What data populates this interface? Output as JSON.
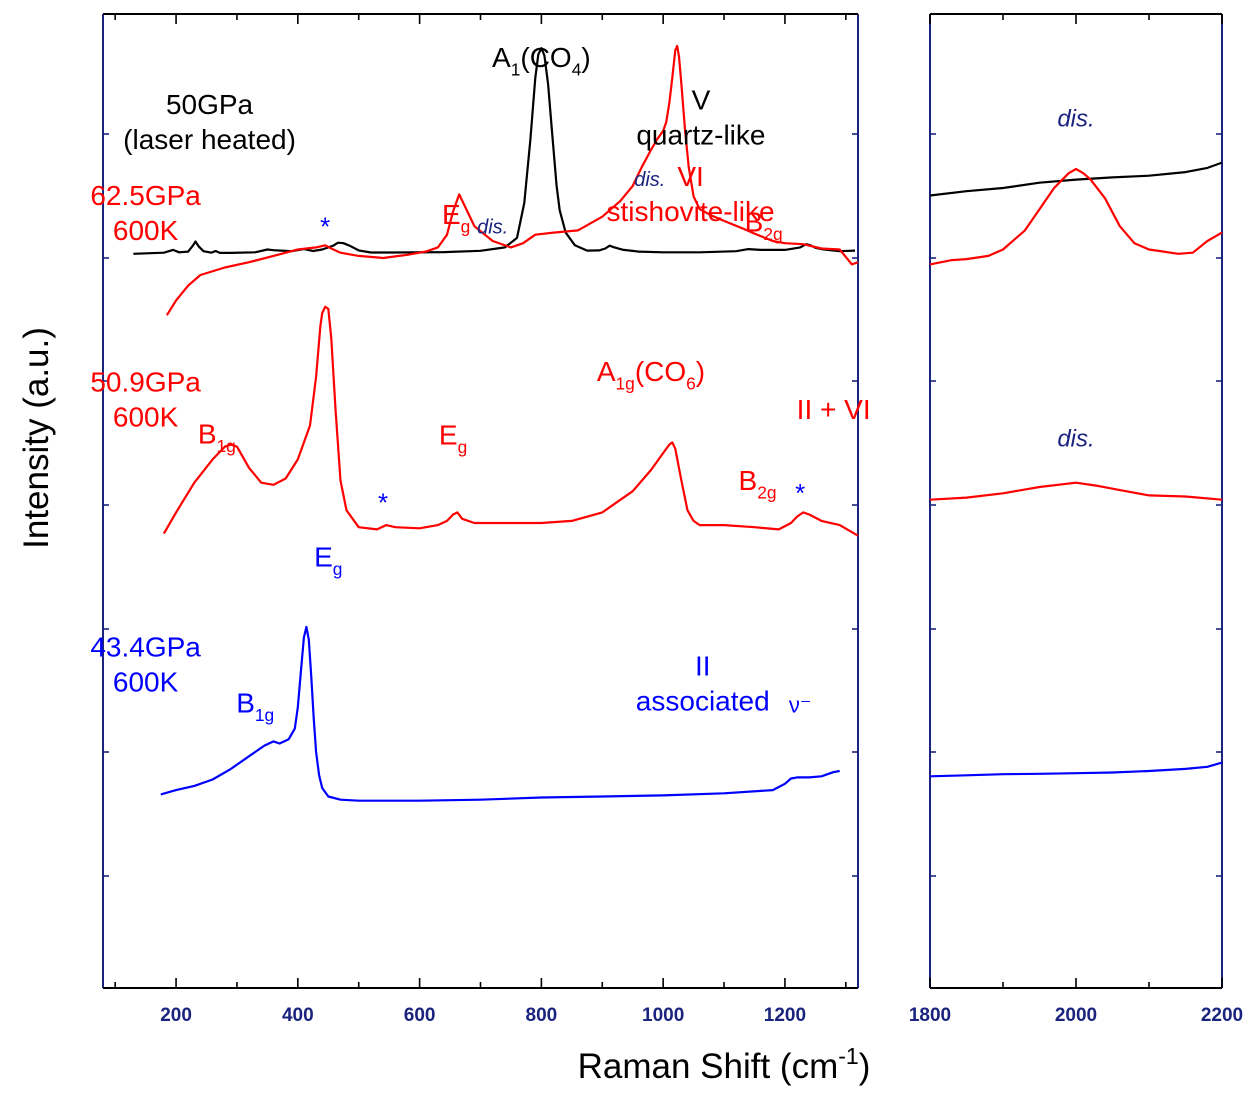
{
  "chart_data": {
    "type": "line",
    "ylabel": "Intensity (a.u.)",
    "xlabel": {
      "main": "Raman Shift (cm",
      "sup": "-1",
      "tail": ")"
    },
    "colors": {
      "axis": "#1a237e",
      "black": "#000000",
      "red": "#ff0000",
      "blue": "#0000ff",
      "navy": "#1a237e"
    },
    "panels": [
      {
        "id": "left",
        "xlim": [
          80,
          1320
        ],
        "ylim": [
          0,
          1000
        ],
        "xticks": [
          200,
          400,
          600,
          800,
          1000,
          1200
        ],
        "tick_labels": [
          "200",
          "400",
          "600",
          "800",
          "1000",
          "1200"
        ]
      },
      {
        "id": "right",
        "xlim": [
          1800,
          2200
        ],
        "ylim": [
          0,
          1000
        ],
        "xticks": [
          1800,
          2000,
          2200
        ],
        "tick_labels": [
          "1800",
          "2000",
          "2200"
        ]
      }
    ],
    "series": [
      {
        "key": "s50",
        "color": "#000000",
        "left": {
          "x": [
            130,
            180,
            195,
            205,
            220,
            228,
            232,
            237,
            245,
            258,
            265,
            272,
            290,
            330,
            350,
            360,
            372,
            390,
            410,
            425,
            440,
            458,
            466,
            475,
            485,
            500,
            520,
            560,
            640,
            700,
            740,
            760,
            772,
            782,
            790,
            795,
            800,
            805,
            811,
            818,
            825,
            830,
            840,
            855,
            875,
            895,
            905,
            912,
            920,
            935,
            960,
            1000,
            1060,
            1120,
            1140,
            1160,
            1200,
            1225,
            1235,
            1242,
            1250,
            1260,
            1270,
            1290,
            1315
          ],
          "y": [
            20,
            25,
            38,
            27,
            30,
            60,
            78,
            55,
            32,
            25,
            33,
            24,
            24,
            27,
            40,
            37,
            35,
            32,
            42,
            33,
            40,
            58,
            72,
            70,
            58,
            36,
            26,
            26,
            28,
            34,
            50,
            95,
            260,
            560,
            850,
            960,
            990,
            955,
            820,
            580,
            340,
            225,
            120,
            60,
            35,
            36,
            45,
            58,
            50,
            38,
            30,
            27,
            27,
            32,
            42,
            38,
            38,
            50,
            65,
            60,
            48,
            42,
            38,
            32,
            35
          ]
        },
        "right": {
          "x": [
            1800,
            1850,
            1900,
            1950,
            2000,
            2050,
            2100,
            2150,
            2180,
            2200
          ],
          "y": [
            295,
            315,
            330,
            355,
            370,
            380,
            388,
            405,
            425,
            450
          ]
        }
      },
      {
        "key": "s625",
        "color": "#ff0000",
        "left": {
          "x": [
            185,
            200,
            220,
            240,
            280,
            320,
            360,
            400,
            430,
            445,
            455,
            470,
            500,
            540,
            580,
            610,
            630,
            645,
            655,
            665,
            675,
            690,
            720,
            750,
            770,
            790,
            820,
            860,
            900,
            930,
            950,
            965,
            980,
            990,
            1000,
            1005,
            1010,
            1015,
            1020,
            1023,
            1026,
            1030,
            1036,
            1042,
            1050,
            1060,
            1080,
            1100,
            1130,
            1150,
            1180,
            1200,
            1230,
            1260,
            1290,
            1310,
            1320
          ],
          "y": [
            -270,
            -200,
            -130,
            -80,
            -45,
            -20,
            10,
            40,
            50,
            60,
            45,
            25,
            10,
            0,
            15,
            30,
            50,
            110,
            220,
            300,
            240,
            150,
            80,
            50,
            70,
            110,
            120,
            130,
            195,
            270,
            340,
            430,
            510,
            560,
            600,
            640,
            730,
            850,
            980,
            1000,
            950,
            820,
            600,
            430,
            290,
            230,
            200,
            175,
            140,
            115,
            80,
            70,
            65,
            45,
            40,
            -30,
            -20
          ]
        },
        "right": {
          "x": [
            1800,
            1830,
            1850,
            1880,
            1900,
            1930,
            1950,
            1970,
            1990,
            2000,
            2010,
            2020,
            2040,
            2060,
            2080,
            2100,
            2120,
            2140,
            2160,
            2180,
            2200
          ],
          "y": [
            -30,
            -10,
            -5,
            10,
            40,
            130,
            230,
            330,
            400,
            420,
            400,
            370,
            280,
            150,
            70,
            40,
            30,
            20,
            25,
            80,
            120
          ]
        }
      },
      {
        "key": "s509",
        "color": "#ff0000",
        "left": {
          "x": [
            180,
            200,
            230,
            260,
            280,
            290,
            300,
            320,
            340,
            360,
            380,
            400,
            420,
            430,
            437,
            440,
            445,
            450,
            455,
            462,
            470,
            480,
            500,
            530,
            545,
            560,
            600,
            630,
            645,
            655,
            662,
            670,
            690,
            740,
            800,
            850,
            900,
            950,
            980,
            1000,
            1010,
            1015,
            1020,
            1030,
            1040,
            1050,
            1060,
            1080,
            1100,
            1150,
            1190,
            1210,
            1220,
            1230,
            1240,
            1260,
            1290,
            1320
          ],
          "y": [
            -1300,
            -1200,
            -1060,
            -950,
            -890,
            -880,
            -890,
            -990,
            -1060,
            -1070,
            -1040,
            -950,
            -790,
            -560,
            -320,
            -260,
            -230,
            -240,
            -380,
            -720,
            -1050,
            -1190,
            -1270,
            -1280,
            -1260,
            -1270,
            -1275,
            -1260,
            -1240,
            -1210,
            -1200,
            -1230,
            -1250,
            -1250,
            -1250,
            -1240,
            -1200,
            -1100,
            -1000,
            -920,
            -880,
            -870,
            -900,
            -1050,
            -1190,
            -1240,
            -1260,
            -1260,
            -1260,
            -1270,
            -1280,
            -1250,
            -1220,
            -1200,
            -1210,
            -1240,
            -1260,
            -1310
          ]
        },
        "right": {
          "x": [
            1800,
            1850,
            1900,
            1950,
            2000,
            2030,
            2060,
            2100,
            2150,
            2200
          ],
          "y": [
            -1140,
            -1130,
            -1110,
            -1080,
            -1060,
            -1075,
            -1095,
            -1120,
            -1125,
            -1140
          ]
        }
      },
      {
        "key": "s434",
        "color": "#0000ff",
        "left": {
          "x": [
            175,
            200,
            230,
            260,
            290,
            320,
            345,
            360,
            370,
            385,
            395,
            400,
            405,
            410,
            414,
            418,
            422,
            426,
            430,
            435,
            440,
            450,
            470,
            500,
            530,
            600,
            700,
            800,
            900,
            1000,
            1100,
            1180,
            1200,
            1210,
            1220,
            1240,
            1260,
            1280,
            1290
          ],
          "y": [
            -2530,
            -2510,
            -2490,
            -2460,
            -2410,
            -2350,
            -2300,
            -2280,
            -2290,
            -2270,
            -2220,
            -2120,
            -1950,
            -1790,
            -1740,
            -1800,
            -1970,
            -2170,
            -2330,
            -2440,
            -2500,
            -2540,
            -2555,
            -2560,
            -2560,
            -2560,
            -2555,
            -2545,
            -2540,
            -2535,
            -2525,
            -2510,
            -2480,
            -2455,
            -2450,
            -2450,
            -2445,
            -2425,
            -2420
          ]
        },
        "right": {
          "x": [
            1800,
            1850,
            1900,
            1950,
            2000,
            2050,
            2100,
            2150,
            2180,
            2200
          ],
          "y": [
            -2445,
            -2440,
            -2435,
            -2433,
            -2430,
            -2427,
            -2420,
            -2410,
            -2400,
            -2380
          ]
        }
      }
    ],
    "annotations": [
      {
        "key": "t50",
        "panel": "left",
        "x": 255,
        "y": 680,
        "color": "#000000",
        "size": 28,
        "lines": [
          "50GPa",
          "(laser heated)"
        ]
      },
      {
        "key": "tA1",
        "panel": "left",
        "x": 800,
        "y": 900,
        "color": "#000000",
        "size": 28,
        "label": "A1(CO4)",
        "parts": [
          [
            "A",
            ""
          ],
          [
            "1",
            "sub"
          ],
          [
            "(CO",
            ""
          ],
          [
            "4",
            "sub"
          ],
          [
            ")",
            ""
          ]
        ]
      },
      {
        "key": "tV",
        "panel": "left",
        "x": 1062,
        "y": 700,
        "color": "#000000",
        "size": 28,
        "lines": [
          "V",
          "quartz-like"
        ]
      },
      {
        "key": "t625",
        "panel": "left",
        "x": 150,
        "y": 250,
        "color": "#ff0000",
        "size": 28,
        "lines": [
          "62.5GPa",
          "600K"
        ]
      },
      {
        "key": "tVI",
        "panel": "left",
        "x": 1045,
        "y": 340,
        "color": "#ff0000",
        "size": 28,
        "lines": [
          "VI",
          "stishovite-like"
        ]
      },
      {
        "key": "tEg1",
        "panel": "left",
        "x": 660,
        "y": 160,
        "color": "#ff0000",
        "size": 28,
        "label": "Eg",
        "parts": [
          [
            "E",
            ""
          ],
          [
            "g",
            "sub"
          ]
        ]
      },
      {
        "key": "tB2g1",
        "panel": "left",
        "x": 1165,
        "y": 125,
        "color": "#ff0000",
        "size": 28,
        "label": "B2g",
        "parts": [
          [
            "B",
            ""
          ],
          [
            "2g",
            "sub"
          ]
        ]
      },
      {
        "key": "tdis1",
        "panel": "left",
        "x": 720,
        "y": 115,
        "color": "#1a237e",
        "size": 20,
        "italic": true,
        "text": "dis."
      },
      {
        "key": "tdis2",
        "panel": "left",
        "x": 978,
        "y": 340,
        "color": "#1a237e",
        "size": 20,
        "italic": true,
        "text": "dis."
      },
      {
        "key": "tstar1",
        "panel": "left",
        "x": 445,
        "y": 105,
        "color": "#0000ff",
        "size": 26,
        "text": "*"
      },
      {
        "key": "t509",
        "panel": "left",
        "x": 150,
        "y": -630,
        "color": "#ff0000",
        "size": 28,
        "lines": [
          "50.9GPa",
          "600K"
        ]
      },
      {
        "key": "tA1g",
        "panel": "left",
        "x": 980,
        "y": -580,
        "color": "#ff0000",
        "size": 28,
        "label": "A1g(CO6)",
        "parts": [
          [
            "A",
            ""
          ],
          [
            "1g",
            "sub"
          ],
          [
            "(CO",
            ""
          ],
          [
            "6",
            "sub"
          ],
          [
            ")",
            ""
          ]
        ]
      },
      {
        "key": "tIIVI",
        "panel": "left",
        "x": 1280,
        "y": -760,
        "color": "#ff0000",
        "size": 28,
        "text": "II + VI"
      },
      {
        "key": "tB1g1",
        "panel": "left",
        "x": 267,
        "y": -875,
        "color": "#ff0000",
        "size": 28,
        "label": "B1g",
        "parts": [
          [
            "B",
            ""
          ],
          [
            "1g",
            "sub"
          ]
        ]
      },
      {
        "key": "tEg2",
        "panel": "left",
        "x": 655,
        "y": -880,
        "color": "#ff0000",
        "size": 28,
        "label": "Eg",
        "parts": [
          [
            "E",
            ""
          ],
          [
            "g",
            "sub"
          ]
        ]
      },
      {
        "key": "tB2g2",
        "panel": "left",
        "x": 1155,
        "y": -1095,
        "color": "#ff0000",
        "size": 28,
        "label": "B2g",
        "parts": [
          [
            "B",
            ""
          ],
          [
            "2g",
            "sub"
          ]
        ]
      },
      {
        "key": "tstar2",
        "panel": "left",
        "x": 540,
        "y": -1195,
        "color": "#0000ff",
        "size": 26,
        "text": "*"
      },
      {
        "key": "tstar3",
        "panel": "left",
        "x": 1225,
        "y": -1150,
        "color": "#0000ff",
        "size": 26,
        "text": "*"
      },
      {
        "key": "t434",
        "panel": "left",
        "x": 150,
        "y": -1880,
        "color": "#0000ff",
        "size": 28,
        "lines": [
          "43.4GPa",
          "600K"
        ]
      },
      {
        "key": "tII",
        "panel": "left",
        "x": 1065,
        "y": -1970,
        "color": "#0000ff",
        "size": 28,
        "lines": [
          "II",
          "associated"
        ]
      },
      {
        "key": "tEg3",
        "panel": "left",
        "x": 450,
        "y": -1455,
        "color": "#0000ff",
        "size": 28,
        "label": "Eg",
        "parts": [
          [
            "E",
            ""
          ],
          [
            "g",
            "sub"
          ]
        ]
      },
      {
        "key": "tB1g2",
        "panel": "left",
        "x": 330,
        "y": -2145,
        "color": "#0000ff",
        "size": 28,
        "label": "B1g",
        "parts": [
          [
            "B",
            ""
          ],
          [
            "1g",
            "sub"
          ]
        ]
      },
      {
        "key": "tnu",
        "panel": "left",
        "x": 1225,
        "y": -2145,
        "color": "#0000ff",
        "size": 22,
        "text": "ν⁻"
      },
      {
        "key": "tdis3",
        "panel": "right",
        "x": 2000,
        "y": 620,
        "color": "#1a237e",
        "size": 24,
        "italic": true,
        "text": "dis."
      },
      {
        "key": "tdis4",
        "panel": "right",
        "x": 2000,
        "y": -890,
        "color": "#1a237e",
        "size": 24,
        "italic": true,
        "text": "dis."
      }
    ]
  }
}
